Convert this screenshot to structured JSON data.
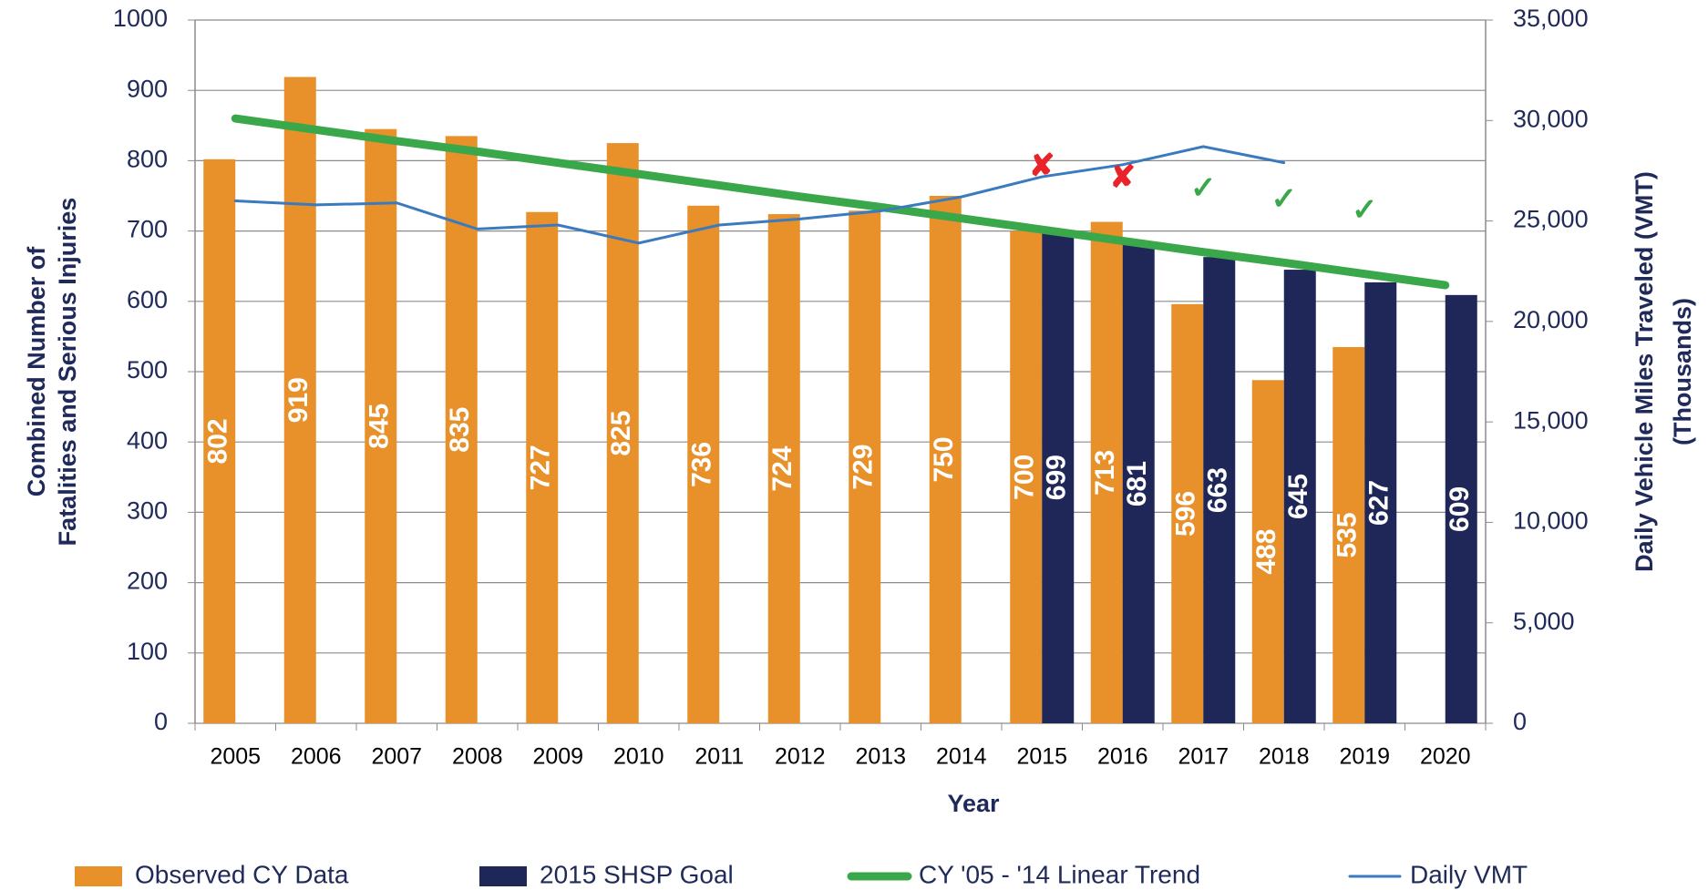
{
  "chart_data": {
    "type": "bar",
    "x_label": "Year",
    "y_label": [
      "Combined Number of",
      "Fatalities and Serious Injuries"
    ],
    "y2_label": [
      "Daily Vehicle Miles Traveled (VMT)",
      "(Thousands)"
    ],
    "categories": [
      "2005",
      "2006",
      "2007",
      "2008",
      "2009",
      "2010",
      "2011",
      "2012",
      "2013",
      "2014",
      "2015",
      "2016",
      "2017",
      "2018",
      "2019",
      "2020"
    ],
    "series": [
      {
        "name": "Observed CY Data",
        "type": "bar",
        "color": "#e8902a",
        "values": [
          802,
          919,
          845,
          835,
          727,
          825,
          736,
          724,
          729,
          750,
          700,
          713,
          596,
          488,
          535,
          null
        ]
      },
      {
        "name": "2015 SHSP Goal",
        "type": "bar",
        "color": "#1f2758",
        "values": [
          null,
          null,
          null,
          null,
          null,
          null,
          null,
          null,
          null,
          null,
          699,
          681,
          663,
          645,
          627,
          609
        ]
      },
      {
        "name": "CY '05 - '14 Linear Trend",
        "type": "line",
        "color": "#3aa84a",
        "values": [
          860,
          844,
          828,
          813,
          797,
          781,
          765,
          749,
          734,
          718,
          702,
          686,
          670,
          655,
          639,
          623
        ]
      },
      {
        "name": "Daily VMT",
        "type": "line",
        "axis": "y2",
        "color": "#3a7abf",
        "values": [
          26000,
          25800,
          25900,
          24600,
          24800,
          23900,
          24800,
          25100,
          25500,
          26200,
          27200,
          27800,
          28700,
          27900,
          null,
          null
        ]
      }
    ],
    "annotations": [
      {
        "x": "2015",
        "text": "✘",
        "color": "#e8232a"
      },
      {
        "x": "2016",
        "text": "✘",
        "color": "#e8232a"
      },
      {
        "x": "2017",
        "text": "✓",
        "color": "#3aa84a"
      },
      {
        "x": "2018",
        "text": "✓",
        "color": "#3aa84a"
      },
      {
        "x": "2019",
        "text": "✓",
        "color": "#3aa84a"
      }
    ],
    "ylim": [
      0,
      1000
    ],
    "yticks": [
      0,
      100,
      200,
      300,
      400,
      500,
      600,
      700,
      800,
      900,
      1000
    ],
    "y2lim": [
      0,
      35000
    ],
    "y2ticks": [
      0,
      {
        "value": 5000,
        "label": "5,000"
      },
      {
        "value": 10000,
        "label": "10,000"
      },
      {
        "value": 15000,
        "label": "15,000"
      },
      {
        "value": 20000,
        "label": "20,000"
      },
      {
        "value": 25000,
        "label": "25,000"
      },
      {
        "value": 30000,
        "label": "30,000"
      },
      {
        "value": 35000,
        "label": "35,000"
      }
    ],
    "grid": true,
    "legend": "bottom"
  }
}
